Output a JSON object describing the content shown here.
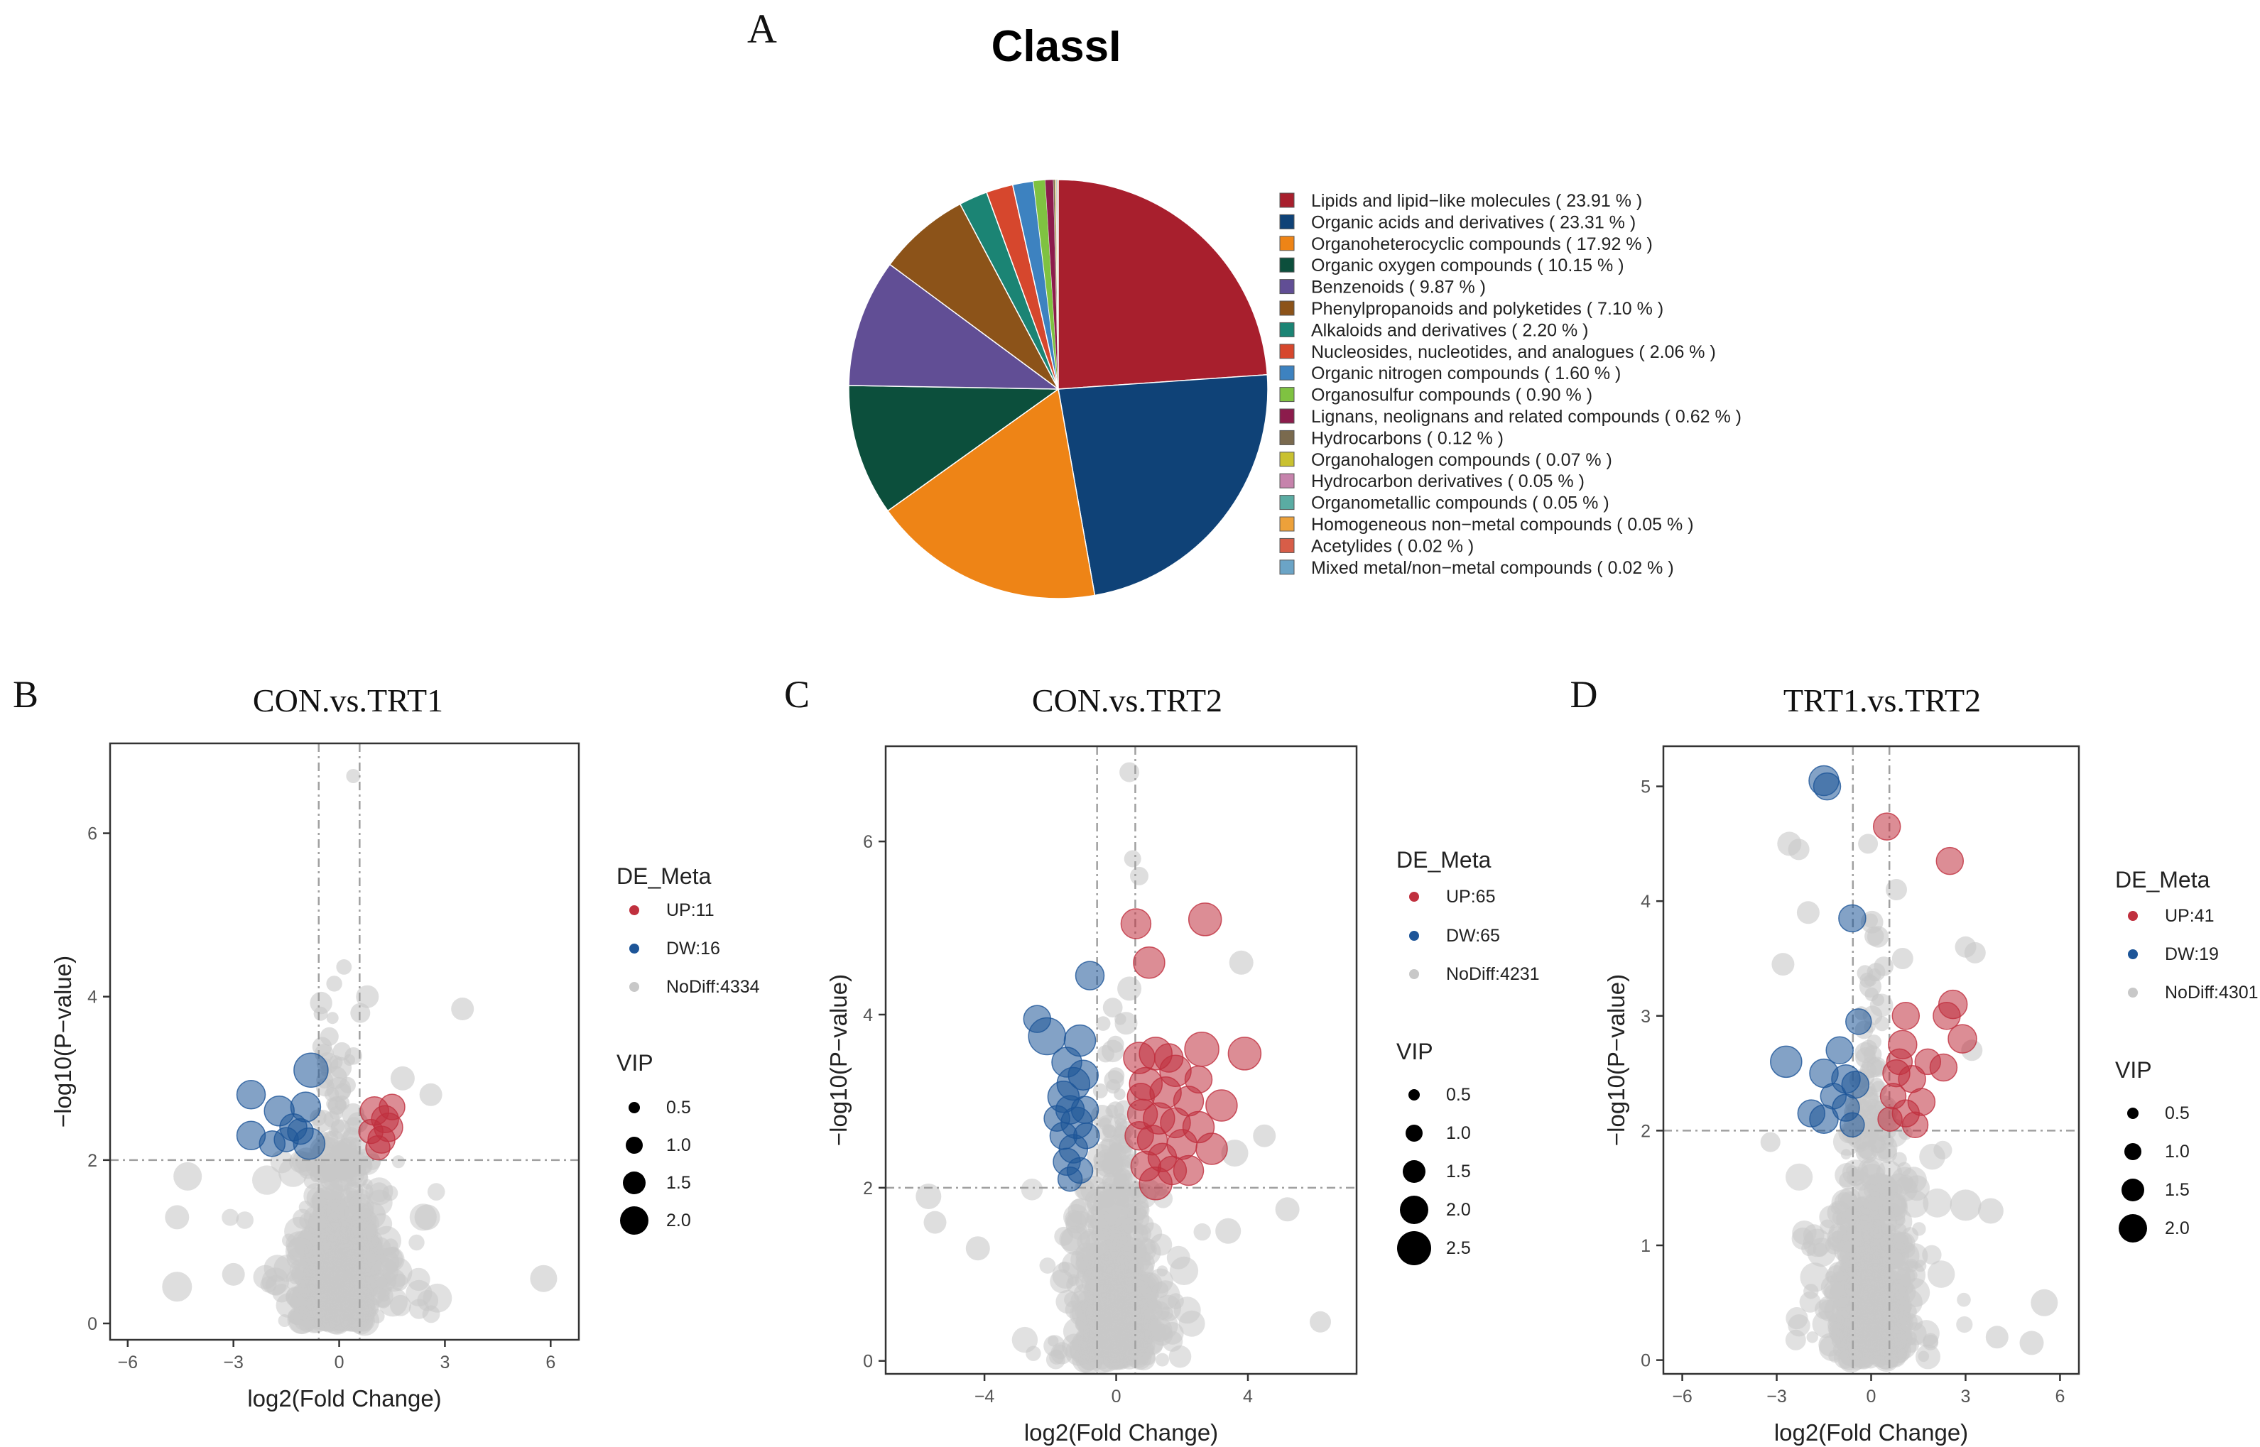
{
  "panel_letters": {
    "a": "A",
    "b": "B",
    "c": "C",
    "d": "D"
  },
  "chart_data": [
    {
      "type": "pie",
      "title": "ClassI",
      "slices": [
        {
          "label": "Lipids and lipid−like molecules",
          "value": 23.91,
          "pct": "( 23.91 % )",
          "color": "#a81f2d"
        },
        {
          "label": "Organic acids and derivatives",
          "value": 23.31,
          "pct": "( 23.31 % )",
          "color": "#0f4277"
        },
        {
          "label": "Organoheterocyclic compounds",
          "value": 17.92,
          "pct": "( 17.92 % )",
          "color": "#ee8416"
        },
        {
          "label": "Organic oxygen compounds",
          "value": 10.15,
          "pct": "( 10.15 % )",
          "color": "#0c4f3c"
        },
        {
          "label": "Benzenoids",
          "value": 9.87,
          "pct": "( 9.87 % )",
          "color": "#614e95"
        },
        {
          "label": "Phenylpropanoids and polyketides",
          "value": 7.1,
          "pct": "( 7.10 % )",
          "color": "#8c5319"
        },
        {
          "label": "Alkaloids and derivatives",
          "value": 2.2,
          "pct": "( 2.20 % )",
          "color": "#1b8474"
        },
        {
          "label": "Nucleosides, nucleotides, and analogues",
          "value": 2.06,
          "pct": "( 2.06 % )",
          "color": "#d6472d"
        },
        {
          "label": "Organic nitrogen compounds",
          "value": 1.6,
          "pct": "( 1.60 % )",
          "color": "#3d82c0"
        },
        {
          "label": "Organosulfur compounds",
          "value": 0.9,
          "pct": "( 0.90 % )",
          "color": "#7fc241"
        },
        {
          "label": "Lignans, neolignans and related compounds",
          "value": 0.62,
          "pct": "( 0.62 % )",
          "color": "#8c1c4c"
        },
        {
          "label": "Hydrocarbons",
          "value": 0.12,
          "pct": "( 0.12 % )",
          "color": "#7a6a4e"
        },
        {
          "label": "Organohalogen compounds",
          "value": 0.07,
          "pct": "( 0.07 % )",
          "color": "#c9c130"
        },
        {
          "label": "Hydrocarbon derivatives",
          "value": 0.05,
          "pct": "( 0.05 % )",
          "color": "#c683ac"
        },
        {
          "label": "Organometallic compounds",
          "value": 0.05,
          "pct": "( 0.05 % )",
          "color": "#5aaca3"
        },
        {
          "label": "Homogeneous non−metal compounds",
          "value": 0.05,
          "pct": "( 0.05 % )",
          "color": "#eda13a"
        },
        {
          "label": "Acetylides",
          "value": 0.02,
          "pct": "( 0.02 % )",
          "color": "#d75d48"
        },
        {
          "label": "Mixed metal/non−metal compounds",
          "value": 0.02,
          "pct": "( 0.02 % )",
          "color": "#6ba4c6"
        }
      ]
    },
    {
      "type": "scatter",
      "title": "CON.vs.TRT1",
      "xlabel": "log2(Fold Change)",
      "ylabel": "−log10(P−value)",
      "xlim": [
        -6.5,
        6.8
      ],
      "ylim": [
        -0.2,
        7.1
      ],
      "xticks": [
        -6,
        -3,
        0,
        3,
        6
      ],
      "yticks": [
        0,
        2,
        4,
        6
      ],
      "fc_threshold": 0.58,
      "p_threshold": 2,
      "legend_title": "DE_Meta",
      "groups": [
        {
          "label": "UP:11",
          "color": "#c0303e"
        },
        {
          "label": "DW:16",
          "color": "#1d5598"
        },
        {
          "label": "NoDiff:4334",
          "color": "#c8c8c8"
        }
      ],
      "size_title": "VIP",
      "vip_sizes": [
        "0.5",
        "1.0",
        "1.5",
        "2.0"
      ],
      "highlight": [
        {
          "x": -0.8,
          "y": 3.1,
          "vip": 2.0,
          "g": "dw"
        },
        {
          "x": -2.5,
          "y": 2.8,
          "vip": 1.6,
          "g": "dw"
        },
        {
          "x": -1.7,
          "y": 2.6,
          "vip": 1.7,
          "g": "dw"
        },
        {
          "x": -1.3,
          "y": 2.4,
          "vip": 1.5,
          "g": "dw"
        },
        {
          "x": -2.5,
          "y": 2.3,
          "vip": 1.6,
          "g": "dw"
        },
        {
          "x": -1.9,
          "y": 2.2,
          "vip": 1.4,
          "g": "dw"
        },
        {
          "x": -1.5,
          "y": 2.25,
          "vip": 1.3,
          "g": "dw"
        },
        {
          "x": -0.85,
          "y": 2.2,
          "vip": 1.8,
          "g": "dw"
        },
        {
          "x": -1.1,
          "y": 2.35,
          "vip": 1.4,
          "g": "dw"
        },
        {
          "x": -0.95,
          "y": 2.65,
          "vip": 1.7,
          "g": "dw"
        },
        {
          "x": 1.0,
          "y": 2.6,
          "vip": 1.6,
          "g": "up"
        },
        {
          "x": 1.3,
          "y": 2.5,
          "vip": 1.5,
          "g": "up"
        },
        {
          "x": 1.5,
          "y": 2.65,
          "vip": 1.4,
          "g": "up"
        },
        {
          "x": 0.9,
          "y": 2.35,
          "vip": 1.3,
          "g": "up"
        },
        {
          "x": 1.2,
          "y": 2.25,
          "vip": 1.5,
          "g": "up"
        },
        {
          "x": 1.4,
          "y": 2.4,
          "vip": 1.6,
          "g": "up"
        },
        {
          "x": 1.1,
          "y": 2.15,
          "vip": 1.3,
          "g": "up"
        }
      ],
      "nodiff_outliers": [
        {
          "x": 0.4,
          "y": 6.7,
          "vip": 0.6
        },
        {
          "x": 0.8,
          "y": 4.0,
          "vip": 1.2
        },
        {
          "x": 0.6,
          "y": 3.8,
          "vip": 1.0
        },
        {
          "x": 3.5,
          "y": 3.85,
          "vip": 1.2
        },
        {
          "x": -4.3,
          "y": 1.8,
          "vip": 1.6
        },
        {
          "x": -4.6,
          "y": 1.3,
          "vip": 1.3
        },
        {
          "x": -4.6,
          "y": 0.45,
          "vip": 1.7
        },
        {
          "x": 5.8,
          "y": 0.55,
          "vip": 1.5
        },
        {
          "x": 2.5,
          "y": 1.3,
          "vip": 1.4
        },
        {
          "x": -3.0,
          "y": 0.6,
          "vip": 1.2
        },
        {
          "x": 2.6,
          "y": 2.8,
          "vip": 1.2
        },
        {
          "x": 1.8,
          "y": 3.0,
          "vip": 1.3
        }
      ]
    },
    {
      "type": "scatter",
      "title": "CON.vs.TRT2",
      "xlabel": "log2(Fold Change)",
      "ylabel": "−log10(P−value)",
      "xlim": [
        -7.0,
        7.3
      ],
      "ylim": [
        -0.15,
        7.1
      ],
      "xticks": [
        -4,
        0,
        4
      ],
      "yticks": [
        0,
        2,
        4,
        6
      ],
      "fc_threshold": 0.58,
      "p_threshold": 2,
      "legend_title": "DE_Meta",
      "groups": [
        {
          "label": "UP:65",
          "color": "#c0303e"
        },
        {
          "label": "DW:65",
          "color": "#1d5598"
        },
        {
          "label": "NoDiff:4231",
          "color": "#c8c8c8"
        }
      ],
      "size_title": "VIP",
      "vip_sizes": [
        "0.5",
        "1.0",
        "1.5",
        "2.0",
        "2.5"
      ],
      "highlight": [
        {
          "x": -0.8,
          "y": 4.45,
          "vip": 1.6,
          "g": "dw"
        },
        {
          "x": -2.4,
          "y": 3.95,
          "vip": 1.5,
          "g": "dw"
        },
        {
          "x": -2.1,
          "y": 3.75,
          "vip": 2.2,
          "g": "dw"
        },
        {
          "x": -1.1,
          "y": 3.7,
          "vip": 1.8,
          "g": "dw"
        },
        {
          "x": -1.5,
          "y": 3.45,
          "vip": 1.7,
          "g": "dw"
        },
        {
          "x": -1.3,
          "y": 3.2,
          "vip": 1.9,
          "g": "dw"
        },
        {
          "x": -1.0,
          "y": 3.3,
          "vip": 1.7,
          "g": "dw"
        },
        {
          "x": -1.6,
          "y": 3.05,
          "vip": 1.8,
          "g": "dw"
        },
        {
          "x": -1.4,
          "y": 2.9,
          "vip": 1.6,
          "g": "dw"
        },
        {
          "x": -1.2,
          "y": 2.75,
          "vip": 1.8,
          "g": "dw"
        },
        {
          "x": -1.6,
          "y": 2.6,
          "vip": 1.5,
          "g": "dw"
        },
        {
          "x": -0.9,
          "y": 2.6,
          "vip": 1.4,
          "g": "dw"
        },
        {
          "x": -1.3,
          "y": 2.45,
          "vip": 1.6,
          "g": "dw"
        },
        {
          "x": -1.5,
          "y": 2.3,
          "vip": 1.5,
          "g": "dw"
        },
        {
          "x": -1.1,
          "y": 2.2,
          "vip": 1.4,
          "g": "dw"
        },
        {
          "x": -1.4,
          "y": 2.1,
          "vip": 1.3,
          "g": "dw"
        },
        {
          "x": -0.95,
          "y": 2.9,
          "vip": 1.5,
          "g": "dw"
        },
        {
          "x": -1.8,
          "y": 2.8,
          "vip": 1.4,
          "g": "dw"
        },
        {
          "x": 0.6,
          "y": 5.05,
          "vip": 1.7,
          "g": "up"
        },
        {
          "x": 2.7,
          "y": 5.1,
          "vip": 1.9,
          "g": "up"
        },
        {
          "x": 1.0,
          "y": 4.6,
          "vip": 1.8,
          "g": "up"
        },
        {
          "x": 3.9,
          "y": 3.55,
          "vip": 1.9,
          "g": "up"
        },
        {
          "x": 2.6,
          "y": 3.6,
          "vip": 2.0,
          "g": "up"
        },
        {
          "x": 1.2,
          "y": 3.55,
          "vip": 1.9,
          "g": "up"
        },
        {
          "x": 0.7,
          "y": 3.5,
          "vip": 1.8,
          "g": "up"
        },
        {
          "x": 1.8,
          "y": 3.35,
          "vip": 1.8,
          "g": "up"
        },
        {
          "x": 0.9,
          "y": 3.2,
          "vip": 1.9,
          "g": "up"
        },
        {
          "x": 1.5,
          "y": 3.1,
          "vip": 1.8,
          "g": "up"
        },
        {
          "x": 2.2,
          "y": 3.0,
          "vip": 1.7,
          "g": "up"
        },
        {
          "x": 3.2,
          "y": 2.95,
          "vip": 1.8,
          "g": "up"
        },
        {
          "x": 0.8,
          "y": 2.85,
          "vip": 1.7,
          "g": "up"
        },
        {
          "x": 1.3,
          "y": 2.8,
          "vip": 1.8,
          "g": "up"
        },
        {
          "x": 1.8,
          "y": 2.75,
          "vip": 1.7,
          "g": "up"
        },
        {
          "x": 2.5,
          "y": 2.7,
          "vip": 1.8,
          "g": "up"
        },
        {
          "x": 0.7,
          "y": 2.6,
          "vip": 1.6,
          "g": "up"
        },
        {
          "x": 1.1,
          "y": 2.55,
          "vip": 1.7,
          "g": "up"
        },
        {
          "x": 2.0,
          "y": 2.5,
          "vip": 1.7,
          "g": "up"
        },
        {
          "x": 2.9,
          "y": 2.45,
          "vip": 1.8,
          "g": "up"
        },
        {
          "x": 1.4,
          "y": 2.35,
          "vip": 1.6,
          "g": "up"
        },
        {
          "x": 0.9,
          "y": 2.25,
          "vip": 1.7,
          "g": "up"
        },
        {
          "x": 1.7,
          "y": 2.2,
          "vip": 1.6,
          "g": "up"
        },
        {
          "x": 2.2,
          "y": 2.2,
          "vip": 1.7,
          "g": "up"
        },
        {
          "x": 1.2,
          "y": 2.05,
          "vip": 1.9,
          "g": "up"
        },
        {
          "x": 0.75,
          "y": 3.05,
          "vip": 1.5,
          "g": "up"
        },
        {
          "x": 1.6,
          "y": 3.5,
          "vip": 1.6,
          "g": "up"
        },
        {
          "x": 2.5,
          "y": 3.25,
          "vip": 1.5,
          "g": "up"
        }
      ],
      "nodiff_outliers": [
        {
          "x": 0.4,
          "y": 6.8,
          "vip": 1.0
        },
        {
          "x": 0.5,
          "y": 5.8,
          "vip": 0.8
        },
        {
          "x": 0.7,
          "y": 5.6,
          "vip": 0.9
        },
        {
          "x": 0.4,
          "y": 4.3,
          "vip": 1.3
        },
        {
          "x": 3.8,
          "y": 4.6,
          "vip": 1.3
        },
        {
          "x": 0.3,
          "y": 3.9,
          "vip": 1.2
        },
        {
          "x": -5.7,
          "y": 1.9,
          "vip": 1.4
        },
        {
          "x": -5.5,
          "y": 1.6,
          "vip": 1.2
        },
        {
          "x": 5.2,
          "y": 1.75,
          "vip": 1.3
        },
        {
          "x": 6.2,
          "y": 0.45,
          "vip": 1.1
        },
        {
          "x": -4.2,
          "y": 1.3,
          "vip": 1.3
        },
        {
          "x": 3.4,
          "y": 1.5,
          "vip": 1.4
        },
        {
          "x": 4.5,
          "y": 2.6,
          "vip": 1.2
        },
        {
          "x": 3.6,
          "y": 2.4,
          "vip": 1.5
        }
      ]
    },
    {
      "type": "scatter",
      "title": "TRT1.vs.TRT2",
      "xlabel": "log2(Fold Change)",
      "ylabel": "−log10(P−value)",
      "xlim": [
        -6.6,
        6.6
      ],
      "ylim": [
        -0.12,
        5.35
      ],
      "xticks": [
        -6,
        -3,
        0,
        3,
        6
      ],
      "yticks": [
        0,
        1,
        2,
        3,
        4,
        5
      ],
      "fc_threshold": 0.58,
      "p_threshold": 2,
      "legend_title": "DE_Meta",
      "groups": [
        {
          "label": "UP:41",
          "color": "#c0303e"
        },
        {
          "label": "DW:19",
          "color": "#1d5598"
        },
        {
          "label": "NoDiff:4301",
          "color": "#c8c8c8"
        }
      ],
      "size_title": "VIP",
      "vip_sizes": [
        "0.5",
        "1.0",
        "1.5",
        "2.0"
      ],
      "highlight": [
        {
          "x": -1.5,
          "y": 5.05,
          "vip": 1.7,
          "g": "dw"
        },
        {
          "x": -1.4,
          "y": 5.0,
          "vip": 1.5,
          "g": "dw"
        },
        {
          "x": -0.6,
          "y": 3.85,
          "vip": 1.5,
          "g": "dw"
        },
        {
          "x": -0.4,
          "y": 2.95,
          "vip": 1.4,
          "g": "dw"
        },
        {
          "x": -2.7,
          "y": 2.6,
          "vip": 1.8,
          "g": "dw"
        },
        {
          "x": -1.0,
          "y": 2.7,
          "vip": 1.5,
          "g": "dw"
        },
        {
          "x": -1.5,
          "y": 2.5,
          "vip": 1.6,
          "g": "dw"
        },
        {
          "x": -0.8,
          "y": 2.45,
          "vip": 1.6,
          "g": "dw"
        },
        {
          "x": -0.5,
          "y": 2.4,
          "vip": 1.5,
          "g": "dw"
        },
        {
          "x": -1.2,
          "y": 2.3,
          "vip": 1.4,
          "g": "dw"
        },
        {
          "x": -0.8,
          "y": 2.2,
          "vip": 1.5,
          "g": "dw"
        },
        {
          "x": -1.9,
          "y": 2.15,
          "vip": 1.5,
          "g": "dw"
        },
        {
          "x": -1.5,
          "y": 2.1,
          "vip": 1.6,
          "g": "dw"
        },
        {
          "x": -0.6,
          "y": 2.05,
          "vip": 1.3,
          "g": "dw"
        },
        {
          "x": 0.5,
          "y": 4.65,
          "vip": 1.5,
          "g": "up"
        },
        {
          "x": 2.5,
          "y": 4.35,
          "vip": 1.5,
          "g": "up"
        },
        {
          "x": 2.6,
          "y": 3.1,
          "vip": 1.6,
          "g": "up"
        },
        {
          "x": 2.4,
          "y": 3.0,
          "vip": 1.5,
          "g": "up"
        },
        {
          "x": 1.1,
          "y": 3.0,
          "vip": 1.5,
          "g": "up"
        },
        {
          "x": 2.9,
          "y": 2.8,
          "vip": 1.6,
          "g": "up"
        },
        {
          "x": 1.0,
          "y": 2.75,
          "vip": 1.6,
          "g": "up"
        },
        {
          "x": 0.8,
          "y": 2.5,
          "vip": 1.5,
          "g": "up"
        },
        {
          "x": 2.3,
          "y": 2.55,
          "vip": 1.5,
          "g": "up"
        },
        {
          "x": 1.3,
          "y": 2.45,
          "vip": 1.5,
          "g": "up"
        },
        {
          "x": 0.7,
          "y": 2.3,
          "vip": 1.4,
          "g": "up"
        },
        {
          "x": 1.6,
          "y": 2.25,
          "vip": 1.5,
          "g": "up"
        },
        {
          "x": 1.1,
          "y": 2.15,
          "vip": 1.5,
          "g": "up"
        },
        {
          "x": 0.6,
          "y": 2.1,
          "vip": 1.3,
          "g": "up"
        },
        {
          "x": 1.4,
          "y": 2.05,
          "vip": 1.4,
          "g": "up"
        },
        {
          "x": 0.9,
          "y": 2.6,
          "vip": 1.4,
          "g": "up"
        },
        {
          "x": 1.8,
          "y": 2.6,
          "vip": 1.4,
          "g": "up"
        }
      ],
      "nodiff_outliers": [
        {
          "x": -2.6,
          "y": 4.5,
          "vip": 1.3
        },
        {
          "x": -2.3,
          "y": 4.45,
          "vip": 1.1
        },
        {
          "x": -0.1,
          "y": 4.5,
          "vip": 1.0
        },
        {
          "x": -2.0,
          "y": 3.9,
          "vip": 1.2
        },
        {
          "x": 0.8,
          "y": 4.1,
          "vip": 1.1
        },
        {
          "x": 3.0,
          "y": 3.6,
          "vip": 1.1
        },
        {
          "x": 3.3,
          "y": 3.55,
          "vip": 1.1
        },
        {
          "x": -2.8,
          "y": 3.45,
          "vip": 1.2
        },
        {
          "x": -3.2,
          "y": 1.9,
          "vip": 1.0
        },
        {
          "x": 5.5,
          "y": 0.5,
          "vip": 1.5
        },
        {
          "x": 4.0,
          "y": 0.2,
          "vip": 1.2
        },
        {
          "x": 5.1,
          "y": 0.15,
          "vip": 1.3
        },
        {
          "x": 3.8,
          "y": 1.3,
          "vip": 1.4
        },
        {
          "x": 3.0,
          "y": 1.35,
          "vip": 1.8
        },
        {
          "x": 1.0,
          "y": 3.5,
          "vip": 1.1
        },
        {
          "x": 3.2,
          "y": 2.7,
          "vip": 1.1
        }
      ]
    }
  ]
}
